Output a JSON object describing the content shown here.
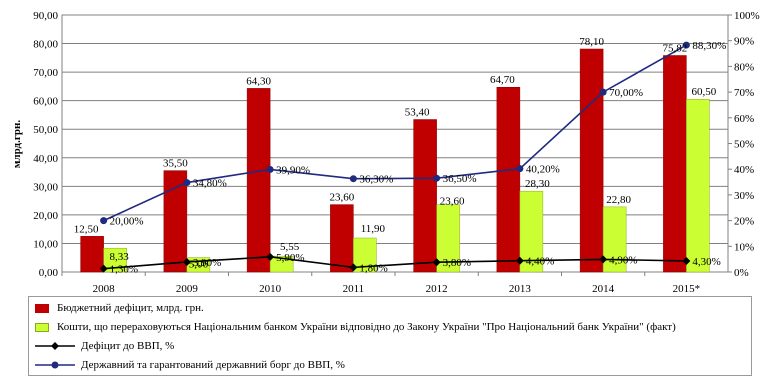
{
  "chart_data": {
    "type": "bar",
    "categories": [
      "2008",
      "2009",
      "2010",
      "2011",
      "2012",
      "2013",
      "2014",
      "2015*"
    ],
    "ylabel": "млрд.грн.",
    "ylim": [
      0,
      90
    ],
    "y_ticks": [
      "0,00",
      "10,00",
      "20,00",
      "30,00",
      "40,00",
      "50,00",
      "60,00",
      "70,00",
      "80,00",
      "90,00"
    ],
    "y2lim": [
      0,
      100
    ],
    "y2_ticks": [
      "0%",
      "10%",
      "20%",
      "30%",
      "40%",
      "50%",
      "60%",
      "70%",
      "80%",
      "90%",
      "100%"
    ],
    "grid": true,
    "legend_position": "bottom",
    "series": [
      {
        "name": "Бюджетний дефіцит, млрд. грн.",
        "kind": "bar",
        "axis": "left",
        "color": "#c00000",
        "values": [
          12.5,
          35.5,
          64.3,
          23.6,
          53.4,
          64.7,
          78.1,
          75.82
        ],
        "labels": [
          "12,50",
          "35,50",
          "64,30",
          "23,60",
          "53,40",
          "64,70",
          "78,10",
          "75,82"
        ]
      },
      {
        "name": "Кошти, що перераховуються Національним банком України відповідно до Закону України \"Про Національний банк України\" (факт)",
        "kind": "bar",
        "axis": "left",
        "color": "#ccff33",
        "values": [
          8.33,
          5.06,
          5.55,
          11.9,
          23.6,
          28.3,
          22.8,
          60.5
        ],
        "labels": [
          "8,33",
          "5,06",
          "5,55",
          "11,90",
          "23,60",
          "28,30",
          "22,80",
          "60,50"
        ]
      },
      {
        "name": "Дефіцит до ВВП, %",
        "kind": "line",
        "axis": "right",
        "color": "#000000",
        "marker": "diamond",
        "values": [
          1.3,
          3.9,
          5.9,
          1.8,
          3.8,
          4.4,
          4.9,
          4.3
        ],
        "labels": [
          "1,30%",
          "3,90%",
          "5,90%",
          "1,80%",
          "3,80%",
          "4,40%",
          "4,90%",
          "4,30%"
        ]
      },
      {
        "name": "Державний та гарантований державний борг до ВВП, %",
        "kind": "line",
        "axis": "right",
        "color": "#1f2a80",
        "marker": "circle",
        "values": [
          20.0,
          34.8,
          39.9,
          36.3,
          36.5,
          40.2,
          70.0,
          88.3
        ],
        "labels": [
          "20,00%",
          "34,80%",
          "39,90%",
          "36,30%",
          "36,50%",
          "40,20%",
          "70,00%",
          "88,30%"
        ]
      }
    ]
  }
}
